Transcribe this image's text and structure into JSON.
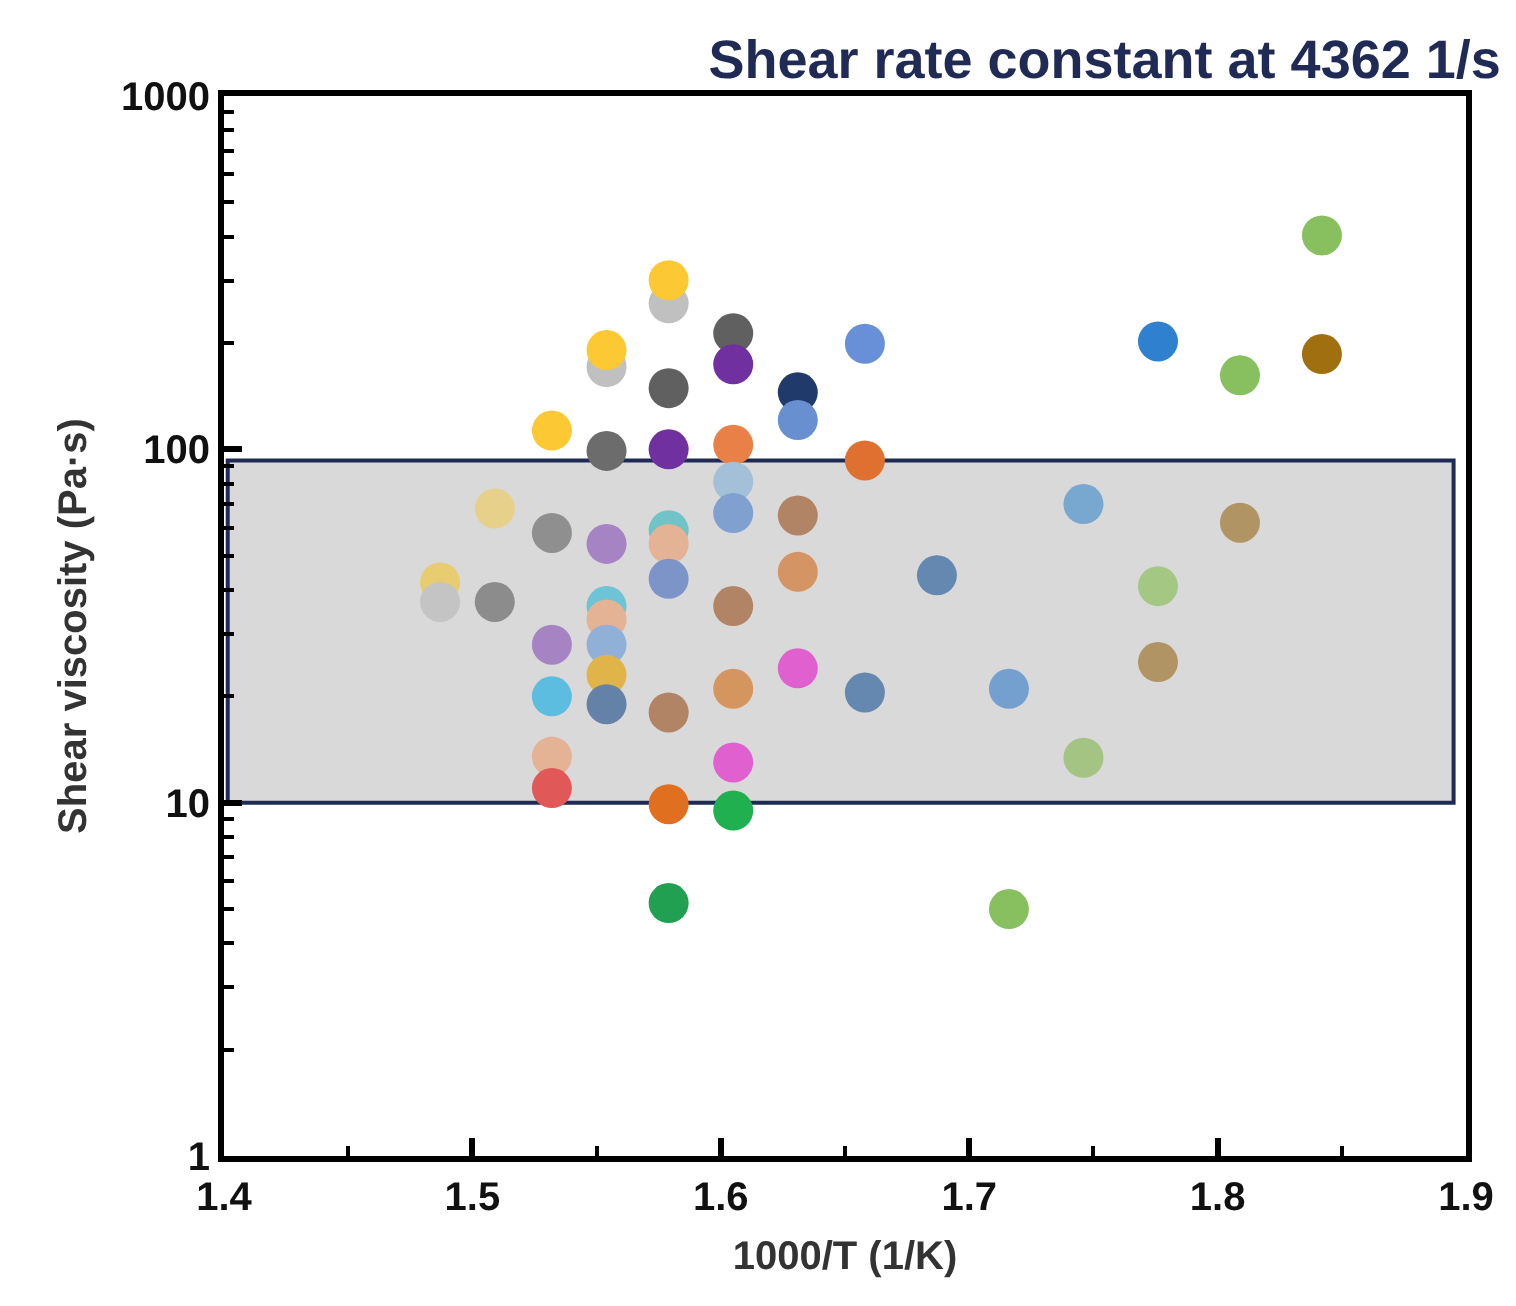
{
  "chart_data": {
    "type": "scatter",
    "title": "Shear rate constant at 4362 1/s",
    "xlabel": "1000/T (1/K)",
    "ylabel": "Shear viscosity (Pa·s)",
    "x": [
      1.487,
      1.487,
      1.509,
      1.509,
      1.532,
      1.532,
      1.532,
      1.532,
      1.532,
      1.532,
      1.554,
      1.554,
      1.554,
      1.554,
      1.554,
      1.554,
      1.554,
      1.554,
      1.554,
      1.579,
      1.579,
      1.579,
      1.579,
      1.579,
      1.579,
      1.579,
      1.579,
      1.579,
      1.579,
      1.605,
      1.605,
      1.605,
      1.605,
      1.605,
      1.605,
      1.605,
      1.605,
      1.605,
      1.631,
      1.631,
      1.631,
      1.631,
      1.631,
      1.658,
      1.658,
      1.658,
      1.687,
      1.716,
      1.716,
      1.746,
      1.746,
      1.776,
      1.776,
      1.776,
      1.809,
      1.809,
      1.842,
      1.842
    ],
    "values": [
      42,
      37,
      68,
      37,
      113,
      58,
      28,
      20,
      13.5,
      11,
      171,
      191,
      99,
      54,
      36,
      33,
      28,
      23,
      19,
      259,
      301,
      149,
      100,
      59,
      54,
      43,
      18,
      9.9,
      5.2,
      213,
      174,
      103,
      81,
      66,
      36,
      21,
      13,
      9.5,
      145,
      121,
      65,
      45,
      24,
      199,
      93,
      20.5,
      44,
      21,
      5.0,
      70,
      13.4,
      202,
      41,
      25,
      162,
      62,
      403,
      186
    ],
    "colors": [
      "#e8cc70",
      "#c4c4c4",
      "#e6d08a",
      "#8c8c8c",
      "#fcc934",
      "#8f8f8f",
      "#a684c4",
      "#5cbde0",
      "#e4b294",
      "#e05858",
      "#c0c0c0",
      "#fcc934",
      "#6c6c6c",
      "#a684c4",
      "#6cc4d4",
      "#e4b294",
      "#90b0d8",
      "#e0b448",
      "#6482a8",
      "#c0c0c0",
      "#fcc934",
      "#606060",
      "#7030a0",
      "#70c4c8",
      "#e4b294",
      "#7c94c8",
      "#b08464",
      "#e07020",
      "#20a050",
      "#606060",
      "#7030a0",
      "#e88048",
      "#a4c0d8",
      "#80a0d0",
      "#b08464",
      "#d4965e",
      "#e060d0",
      "#20b050",
      "#1f3a6b",
      "#6890d0",
      "#b08464",
      "#d49464",
      "#e060d0",
      "#6890d8",
      "#e07030",
      "#6488b0",
      "#6488b0",
      "#74a0d0",
      "#88c060",
      "#78a8d0",
      "#a4c484",
      "#3080d0",
      "#a4c884",
      "#b09464",
      "#88c060",
      "#b09464",
      "#88c060",
      "#a07010"
    ],
    "marker": "circle",
    "log": "y",
    "xlim": [
      1.4,
      1.9
    ],
    "xticks": [
      1.4,
      1.5,
      1.6,
      1.7,
      1.8,
      1.9
    ],
    "ylim": [
      1,
      1000
    ],
    "yticks": [
      1,
      10,
      100,
      1000
    ],
    "bands": [
      {
        "axis": "y",
        "from": 10,
        "to": 93,
        "color": "#d9d9d9"
      }
    ]
  }
}
